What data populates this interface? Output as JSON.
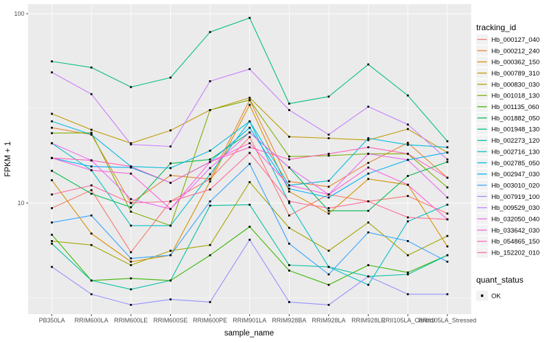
{
  "chart_data": {
    "type": "line",
    "title": "",
    "xlabel": "sample_name",
    "ylabel": "FPKM + 1",
    "y_scale": "log10",
    "y_ticks": [
      10,
      100
    ],
    "y_minor_ticks": [
      3.162,
      31.623
    ],
    "ylim": [
      2.59,
      112
    ],
    "grid": "on",
    "legend_position": "right",
    "legend_title": "tracking_id",
    "quant_legend": {
      "title": "quant_status",
      "items": [
        "OK"
      ]
    },
    "point_shape": "filled-square",
    "point_color": "#000000",
    "panel_bg": "#EBEBEB",
    "grid_color": "#FFFFFF",
    "tick_text_color": "#4D4D4D",
    "categories": [
      "PB350LA",
      "RRIM600LA",
      "RRIM600LE",
      "RRIM600SE",
      "RRIM600PE",
      "RRIM901LA",
      "RRIM928BA",
      "RRIM928LA",
      "RRIM928LE",
      "RRII105LA_Control",
      "RRII105LA_Stressed"
    ],
    "series": [
      {
        "name": "Hb_000127_040",
        "color": "#F8766D",
        "values": [
          9.4,
          11.7,
          5.5,
          10.2,
          13.4,
          22.3,
          8.6,
          11.1,
          10.2,
          10.9,
          8.8
        ]
      },
      {
        "name": "Hb_000212_240",
        "color": "#EA8331",
        "values": [
          25.0,
          23.0,
          10.0,
          14.0,
          13.4,
          35.0,
          13.0,
          12.2,
          16.3,
          20.8,
          13.6
        ]
      },
      {
        "name": "Hb_000362_150",
        "color": "#D89000",
        "values": [
          13.2,
          6.9,
          4.9,
          5.3,
          13.0,
          33.0,
          11.5,
          8.8,
          13.4,
          12.5,
          5.9
        ]
      },
      {
        "name": "Hb_000789_310",
        "color": "#C09B00",
        "values": [
          29.6,
          24.4,
          20.7,
          24.2,
          31.0,
          36.0,
          22.4,
          22.0,
          21.5,
          24.6,
          18.5
        ]
      },
      {
        "name": "Hb_000830_030",
        "color": "#A3A500",
        "values": [
          6.3,
          6.0,
          4.7,
          5.6,
          6.0,
          12.9,
          7.4,
          5.6,
          7.9,
          5.3,
          6.7
        ]
      },
      {
        "name": "Hb_001018_130",
        "color": "#7CAE00",
        "values": [
          23.4,
          23.5,
          9.0,
          7.6,
          31.0,
          35.0,
          17.6,
          17.8,
          18.2,
          18.2,
          12.1
        ]
      },
      {
        "name": "Hb_001135_060",
        "color": "#39B600",
        "values": [
          6.8,
          3.9,
          4.0,
          3.9,
          5.3,
          7.5,
          4.4,
          3.7,
          4.7,
          4.3,
          5.3
        ]
      },
      {
        "name": "Hb_001882_050",
        "color": "#00BB4E",
        "values": [
          14.8,
          11.2,
          9.5,
          16.2,
          17.0,
          23.6,
          15.4,
          9.1,
          9.1,
          13.9,
          16.5
        ]
      },
      {
        "name": "Hb_001948_130",
        "color": "#00BF7D",
        "values": [
          56.0,
          52.0,
          41.0,
          46.0,
          80.0,
          95.0,
          33.5,
          36.5,
          54.0,
          37.0,
          21.2
        ]
      },
      {
        "name": "Hb_002273_120",
        "color": "#00C1A3",
        "values": [
          6.1,
          3.9,
          3.5,
          3.9,
          9.7,
          9.8,
          4.7,
          4.6,
          4.1,
          4.2,
          5.3
        ]
      },
      {
        "name": "Hb_002716_130",
        "color": "#00BFC4",
        "values": [
          20.7,
          14.9,
          7.6,
          7.6,
          14.2,
          27.0,
          10.0,
          4.6,
          3.7,
          8.0,
          9.8
        ]
      },
      {
        "name": "Hb_002785_050",
        "color": "#00BAE0",
        "values": [
          27.0,
          23.0,
          15.6,
          15.3,
          18.9,
          27.0,
          12.4,
          13.1,
          22.0,
          20.3,
          19.7
        ]
      },
      {
        "name": "Hb_002947_030",
        "color": "#00B0F6",
        "values": [
          17.3,
          15.6,
          15.4,
          12.8,
          16.5,
          25.0,
          11.9,
          10.7,
          14.3,
          16.9,
          18.5
        ]
      },
      {
        "name": "Hb_003010_020",
        "color": "#35A2FF",
        "values": [
          7.9,
          8.6,
          5.1,
          5.3,
          10.2,
          16.1,
          6.1,
          4.2,
          7.0,
          6.3,
          4.9
        ]
      },
      {
        "name": "Hb_007919_100",
        "color": "#9590FF",
        "values": [
          4.6,
          3.3,
          2.9,
          3.1,
          3.0,
          6.4,
          3.0,
          2.9,
          4.1,
          3.3,
          3.3
        ]
      },
      {
        "name": "Hb_009529_030",
        "color": "#C77CFF",
        "values": [
          49.0,
          37.6,
          20.4,
          19.9,
          44.0,
          51.0,
          31.0,
          23.0,
          32.3,
          26.0,
          17.0
        ]
      },
      {
        "name": "Hb_032050_040",
        "color": "#E76BF3",
        "values": [
          20.7,
          16.8,
          10.5,
          9.3,
          15.3,
          23.6,
          15.4,
          11.1,
          18.2,
          16.9,
          10.7
        ]
      },
      {
        "name": "Hb_033642_030",
        "color": "#FA62DB",
        "values": [
          17.3,
          14.9,
          14.3,
          9.3,
          16.5,
          20.7,
          12.4,
          11.1,
          15.4,
          12.5,
          8.2
        ]
      },
      {
        "name": "Hb_054865_150",
        "color": "#FF62BC",
        "values": [
          17.3,
          16.8,
          15.6,
          12.8,
          16.5,
          19.7,
          17.0,
          18.2,
          19.7,
          18.2,
          13.6
        ]
      },
      {
        "name": "Hb_152202_010",
        "color": "#FF6A98",
        "values": [
          11.1,
          12.4,
          10.0,
          10.2,
          11.8,
          18.4,
          10.2,
          9.4,
          10.2,
          8.4,
          8.2
        ]
      }
    ]
  }
}
